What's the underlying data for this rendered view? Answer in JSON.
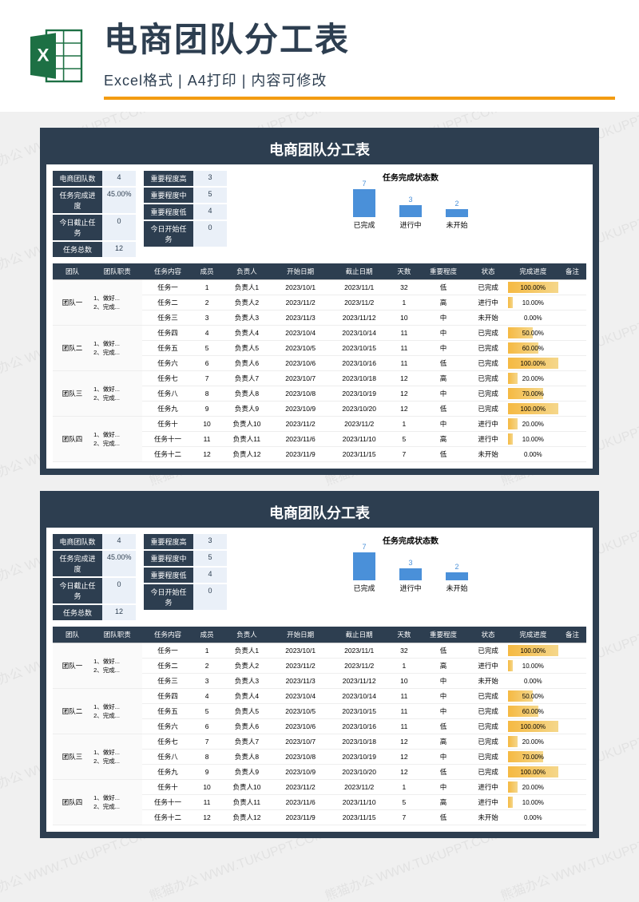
{
  "header": {
    "title": "电商团队分工表",
    "subtitle": "Excel格式 | A4打印 | 内容可修改",
    "icon_color": "#1d7044",
    "accent_color": "#f39c12"
  },
  "watermark": "熊猫办公 WWW.TUKUPPT.COM",
  "sheet": {
    "title": "电商团队分工表",
    "header_bg": "#2d3e50",
    "stats_left": [
      {
        "label": "电商团队数",
        "value": "4"
      },
      {
        "label": "任务完成进度",
        "value": "45.00%"
      },
      {
        "label": "今日截止任务",
        "value": "0"
      },
      {
        "label": "任务总数",
        "value": "12"
      }
    ],
    "stats_right": [
      {
        "label": "重要程度高",
        "value": "3"
      },
      {
        "label": "重要程度中",
        "value": "5"
      },
      {
        "label": "重要程度低",
        "value": "4"
      },
      {
        "label": "今日开始任务",
        "value": "0"
      }
    ],
    "chart": {
      "type": "bar",
      "title": "任务完成状态数",
      "bar_color": "#4a90d9",
      "categories": [
        "已完成",
        "进行中",
        "未开始"
      ],
      "values": [
        7,
        3,
        2
      ],
      "max": 8
    },
    "columns": [
      "团队",
      "团队职责",
      "任务内容",
      "成员",
      "负责人",
      "开始日期",
      "截止日期",
      "天数",
      "重要程度",
      "状态",
      "完成进度",
      "备注"
    ],
    "teams": [
      {
        "name": "团队一",
        "duty": "1、做好...\n2、完成...",
        "rows": [
          {
            "task": "任务一",
            "member": "1",
            "owner": "负责人1",
            "start": "2023/10/1",
            "end": "2023/11/1",
            "days": "32",
            "pri": "低",
            "status": "已完成",
            "pct": 100
          },
          {
            "task": "任务二",
            "member": "2",
            "owner": "负责人2",
            "start": "2023/11/2",
            "end": "2023/11/2",
            "days": "1",
            "pri": "高",
            "status": "进行中",
            "pct": 10
          },
          {
            "task": "任务三",
            "member": "3",
            "owner": "负责人3",
            "start": "2023/11/3",
            "end": "2023/11/12",
            "days": "10",
            "pri": "中",
            "status": "未开始",
            "pct": 0
          }
        ]
      },
      {
        "name": "团队二",
        "duty": "1、做好...\n2、完成...",
        "rows": [
          {
            "task": "任务四",
            "member": "4",
            "owner": "负责人4",
            "start": "2023/10/4",
            "end": "2023/10/14",
            "days": "11",
            "pri": "中",
            "status": "已完成",
            "pct": 50
          },
          {
            "task": "任务五",
            "member": "5",
            "owner": "负责人5",
            "start": "2023/10/5",
            "end": "2023/10/15",
            "days": "11",
            "pri": "中",
            "status": "已完成",
            "pct": 60
          },
          {
            "task": "任务六",
            "member": "6",
            "owner": "负责人6",
            "start": "2023/10/6",
            "end": "2023/10/16",
            "days": "11",
            "pri": "低",
            "status": "已完成",
            "pct": 100
          }
        ]
      },
      {
        "name": "团队三",
        "duty": "1、做好...\n2、完成...",
        "rows": [
          {
            "task": "任务七",
            "member": "7",
            "owner": "负责人7",
            "start": "2023/10/7",
            "end": "2023/10/18",
            "days": "12",
            "pri": "高",
            "status": "已完成",
            "pct": 20
          },
          {
            "task": "任务八",
            "member": "8",
            "owner": "负责人8",
            "start": "2023/10/8",
            "end": "2023/10/19",
            "days": "12",
            "pri": "中",
            "status": "已完成",
            "pct": 70
          },
          {
            "task": "任务九",
            "member": "9",
            "owner": "负责人9",
            "start": "2023/10/9",
            "end": "2023/10/20",
            "days": "12",
            "pri": "低",
            "status": "已完成",
            "pct": 100
          }
        ]
      },
      {
        "name": "团队四",
        "duty": "1、做好...\n2、完成...",
        "rows": [
          {
            "task": "任务十",
            "member": "10",
            "owner": "负责人10",
            "start": "2023/11/2",
            "end": "2023/11/2",
            "days": "1",
            "pri": "中",
            "status": "进行中",
            "pct": 20
          },
          {
            "task": "任务十一",
            "member": "11",
            "owner": "负责人11",
            "start": "2023/11/6",
            "end": "2023/11/10",
            "days": "5",
            "pri": "高",
            "status": "进行中",
            "pct": 10
          },
          {
            "task": "任务十二",
            "member": "12",
            "owner": "负责人12",
            "start": "2023/11/9",
            "end": "2023/11/15",
            "days": "7",
            "pri": "低",
            "status": "未开始",
            "pct": 0
          }
        ]
      }
    ]
  }
}
